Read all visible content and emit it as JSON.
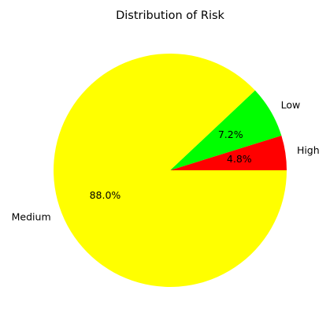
{
  "chart_data": {
    "type": "pie",
    "title": "Distribution of Risk",
    "categories": [
      "High",
      "Low",
      "Medium"
    ],
    "values": [
      4.8,
      7.2,
      88.0
    ],
    "percent_labels": [
      "4.8%",
      "7.2%",
      "88.0%"
    ],
    "colors": [
      "#ff0000",
      "#00ff00",
      "#ffff00"
    ],
    "start_angle_deg": 0,
    "direction": "counterclockwise",
    "legend": "none"
  }
}
